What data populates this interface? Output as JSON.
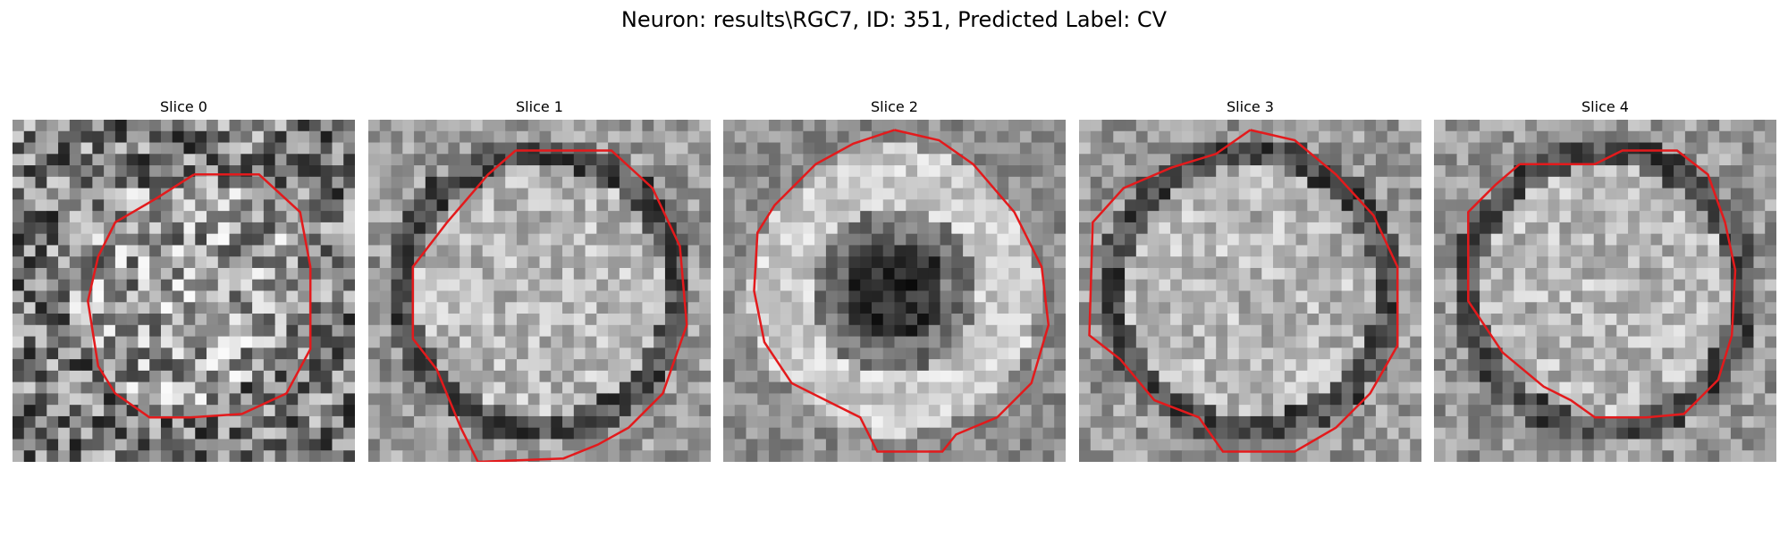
{
  "figure": {
    "title": "Neuron: results\\RGC7, ID: 351, Predicted Label: CV"
  },
  "slices": [
    {
      "title": "Slice 0",
      "pattern": "ring-faint",
      "contour_color": "#e31a1c",
      "contour": [
        [
          0.53,
          0.16
        ],
        [
          0.72,
          0.16
        ],
        [
          0.84,
          0.27
        ],
        [
          0.87,
          0.43
        ],
        [
          0.87,
          0.67
        ],
        [
          0.8,
          0.8
        ],
        [
          0.67,
          0.86
        ],
        [
          0.52,
          0.87
        ],
        [
          0.4,
          0.87
        ],
        [
          0.3,
          0.8
        ],
        [
          0.25,
          0.72
        ],
        [
          0.22,
          0.53
        ],
        [
          0.25,
          0.4
        ],
        [
          0.3,
          0.3
        ],
        [
          0.42,
          0.23
        ],
        [
          0.53,
          0.16
        ]
      ]
    },
    {
      "title": "Slice 1",
      "pattern": "ring-bright",
      "contour_color": "#e31a1c",
      "contour": [
        [
          0.43,
          0.09
        ],
        [
          0.71,
          0.09
        ],
        [
          0.83,
          0.2
        ],
        [
          0.91,
          0.37
        ],
        [
          0.93,
          0.6
        ],
        [
          0.86,
          0.8
        ],
        [
          0.76,
          0.9
        ],
        [
          0.67,
          0.95
        ],
        [
          0.57,
          0.99
        ],
        [
          0.32,
          1.0
        ],
        [
          0.27,
          0.9
        ],
        [
          0.2,
          0.73
        ],
        [
          0.13,
          0.64
        ],
        [
          0.13,
          0.43
        ],
        [
          0.23,
          0.3
        ],
        [
          0.35,
          0.16
        ],
        [
          0.43,
          0.09
        ]
      ]
    },
    {
      "title": "Slice 2",
      "pattern": "ring-dark-core",
      "contour_color": "#e31a1c",
      "contour": [
        [
          0.5,
          0.03
        ],
        [
          0.63,
          0.06
        ],
        [
          0.73,
          0.13
        ],
        [
          0.85,
          0.27
        ],
        [
          0.93,
          0.43
        ],
        [
          0.95,
          0.6
        ],
        [
          0.9,
          0.77
        ],
        [
          0.8,
          0.87
        ],
        [
          0.68,
          0.92
        ],
        [
          0.64,
          0.97
        ],
        [
          0.45,
          0.97
        ],
        [
          0.4,
          0.87
        ],
        [
          0.3,
          0.82
        ],
        [
          0.2,
          0.77
        ],
        [
          0.12,
          0.65
        ],
        [
          0.09,
          0.5
        ],
        [
          0.1,
          0.33
        ],
        [
          0.15,
          0.25
        ],
        [
          0.27,
          0.13
        ],
        [
          0.38,
          0.07
        ],
        [
          0.5,
          0.03
        ]
      ]
    },
    {
      "title": "Slice 3",
      "pattern": "ring-bright",
      "contour_color": "#e31a1c",
      "contour": [
        [
          0.5,
          0.03
        ],
        [
          0.63,
          0.06
        ],
        [
          0.75,
          0.16
        ],
        [
          0.86,
          0.28
        ],
        [
          0.93,
          0.43
        ],
        [
          0.93,
          0.66
        ],
        [
          0.85,
          0.8
        ],
        [
          0.75,
          0.9
        ],
        [
          0.63,
          0.97
        ],
        [
          0.42,
          0.97
        ],
        [
          0.35,
          0.87
        ],
        [
          0.22,
          0.82
        ],
        [
          0.12,
          0.7
        ],
        [
          0.03,
          0.63
        ],
        [
          0.04,
          0.3
        ],
        [
          0.13,
          0.2
        ],
        [
          0.27,
          0.14
        ],
        [
          0.4,
          0.1
        ],
        [
          0.5,
          0.03
        ]
      ]
    },
    {
      "title": "Slice 4",
      "pattern": "ring-bright",
      "contour_color": "#e31a1c",
      "contour": [
        [
          0.25,
          0.13
        ],
        [
          0.47,
          0.13
        ],
        [
          0.55,
          0.09
        ],
        [
          0.71,
          0.09
        ],
        [
          0.8,
          0.16
        ],
        [
          0.85,
          0.3
        ],
        [
          0.88,
          0.44
        ],
        [
          0.87,
          0.63
        ],
        [
          0.83,
          0.76
        ],
        [
          0.73,
          0.86
        ],
        [
          0.62,
          0.87
        ],
        [
          0.47,
          0.87
        ],
        [
          0.4,
          0.82
        ],
        [
          0.32,
          0.78
        ],
        [
          0.2,
          0.68
        ],
        [
          0.1,
          0.53
        ],
        [
          0.1,
          0.27
        ],
        [
          0.18,
          0.19
        ],
        [
          0.25,
          0.13
        ]
      ]
    }
  ]
}
